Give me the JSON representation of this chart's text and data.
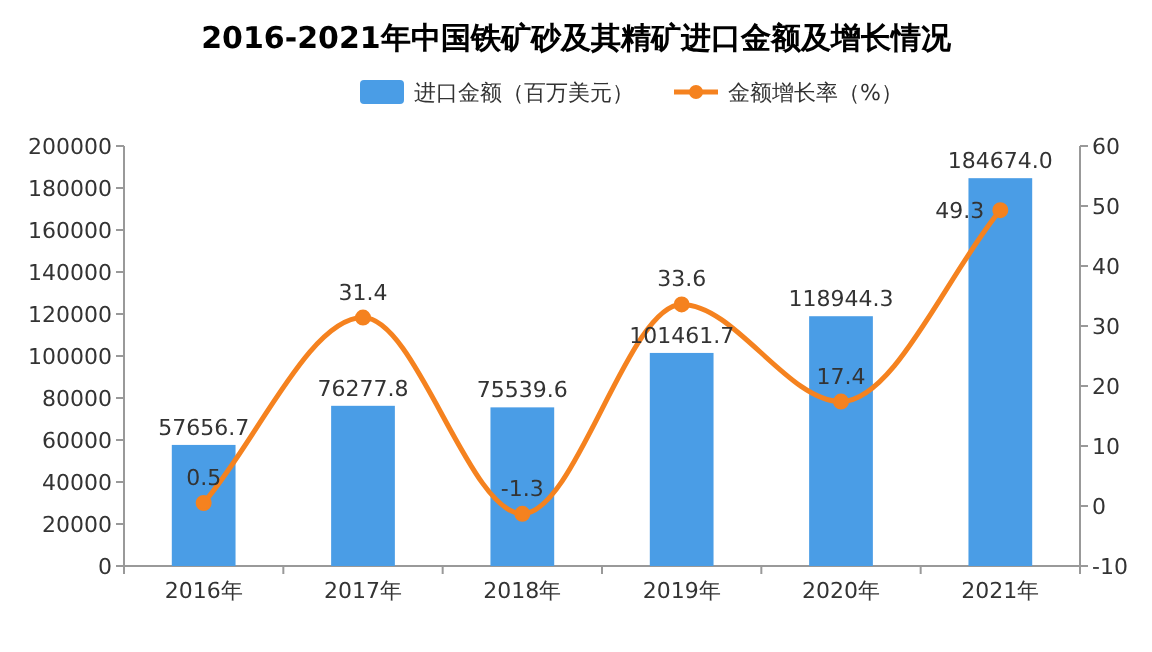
{
  "chart_data": {
    "type": "bar",
    "title": "2016-2021年中国铁矿砂及其精矿进口金额及增长情况",
    "categories": [
      "2016年",
      "2017年",
      "2018年",
      "2019年",
      "2020年",
      "2021年"
    ],
    "series": [
      {
        "name": "进口金额（百万美元）",
        "color": "#4a9de6",
        "values": [
          57656.7,
          76277.8,
          75539.6,
          101461.7,
          118944.3,
          184674.0
        ],
        "value_labels": [
          "57656.7",
          "76277.8",
          "75539.6",
          "101461.7",
          "118944.3",
          "184674.0"
        ]
      },
      {
        "name": "金额增长率（%）",
        "type": "line",
        "axis": "y2",
        "color": "#f5821f",
        "values": [
          0.5,
          31.4,
          -1.3,
          33.6,
          17.4,
          49.3
        ],
        "value_labels": [
          "0.5",
          "31.4",
          "-1.3",
          "33.6",
          "17.4",
          "49.3"
        ]
      }
    ],
    "ylim": [
      0,
      200000
    ],
    "yticks": [
      0,
      20000,
      40000,
      60000,
      80000,
      100000,
      120000,
      140000,
      160000,
      180000,
      200000
    ],
    "y2lim": [
      -10,
      60
    ],
    "y2ticks": [
      -10,
      0,
      10,
      20,
      30,
      40,
      50,
      60
    ],
    "legend": "top",
    "marker": "circle",
    "line_style": "solid"
  }
}
